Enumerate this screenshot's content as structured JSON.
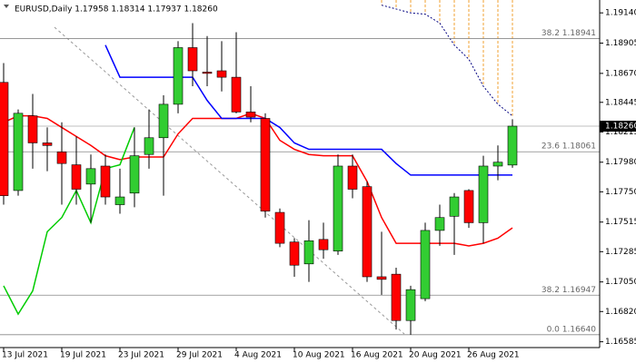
{
  "chart_data": {
    "type": "candlestick",
    "title": "EURUSD,Daily  1.17958 1.18314 1.17937 1.18260",
    "categories": [
      "13 Jul 2021",
      null,
      null,
      null,
      "19 Jul 2021",
      null,
      null,
      null,
      "23 Jul 2021",
      null,
      null,
      null,
      "29 Jul 2021",
      null,
      null,
      null,
      "4 Aug 2021",
      null,
      null,
      null,
      "10 Aug 2021",
      null,
      null,
      null,
      "16 Aug 2021",
      null,
      null,
      null,
      "20 Aug 2021",
      null,
      null,
      null,
      "26 Aug 2021",
      null,
      null,
      null
    ],
    "open": [
      1.186,
      1.1776,
      1.1834,
      1.1813,
      1.1806,
      1.1796,
      1.1781,
      1.1795,
      1.1765,
      1.1774,
      1.1804,
      1.1817,
      1.1843,
      1.1887,
      1.1868,
      1.1869,
      1.1864,
      1.1837,
      1.1832,
      1.1759,
      1.1736,
      1.1719,
      1.1738,
      1.1729,
      1.1795,
      1.1779,
      1.1709,
      1.1711,
      1.1675,
      1.1692,
      1.1745,
      1.1756,
      1.1776,
      1.1751,
      1.1795,
      1.17958
    ],
    "high": [
      1.1875,
      1.1839,
      1.1851,
      1.1825,
      1.1829,
      1.1818,
      1.1804,
      1.1804,
      1.1793,
      1.1825,
      1.1839,
      1.185,
      1.1892,
      1.1906,
      1.1896,
      1.1892,
      1.1899,
      1.1857,
      1.1836,
      1.1762,
      1.1739,
      1.1753,
      1.1751,
      1.1804,
      1.1804,
      1.1783,
      1.1744,
      1.1716,
      1.1702,
      1.1751,
      1.1765,
      1.1774,
      1.1777,
      1.1803,
      1.1811,
      1.18314
    ],
    "low": [
      1.1765,
      1.1772,
      1.1793,
      1.1791,
      1.1765,
      1.1765,
      1.1751,
      1.1765,
      1.1758,
      1.1763,
      1.1793,
      1.1772,
      1.1836,
      1.1857,
      1.1857,
      1.1853,
      1.1836,
      1.1829,
      1.1755,
      1.1732,
      1.1709,
      1.1705,
      1.1723,
      1.1726,
      1.177,
      1.1705,
      1.1695,
      1.1668,
      1.1664,
      1.169,
      1.1733,
      1.1726,
      1.1747,
      1.1735,
      1.1784,
      1.17937
    ],
    "close": [
      1.1772,
      1.1836,
      1.1813,
      1.1811,
      1.1797,
      1.1777,
      1.1793,
      1.1771,
      1.1771,
      1.1803,
      1.1817,
      1.1843,
      1.1887,
      1.1869,
      1.1867,
      1.1864,
      1.1837,
      1.1833,
      1.176,
      1.1735,
      1.1718,
      1.1737,
      1.173,
      1.1795,
      1.1777,
      1.1709,
      1.1707,
      1.1675,
      1.1699,
      1.1745,
      1.1755,
      1.1771,
      1.1751,
      1.1795,
      1.1798,
      1.1826
    ],
    "up_color": "#32cd32",
    "down_color": "#ff0000",
    "lines": [
      {
        "color": "#ff0000",
        "values": [
          1.1829,
          1.1834,
          1.1834,
          1.1832,
          1.1825,
          1.1818,
          1.1811,
          1.1803,
          1.18,
          1.1802,
          1.1802,
          1.1802,
          1.182,
          1.1832,
          1.1832,
          1.1832,
          1.1832,
          1.1836,
          1.1832,
          1.1815,
          1.1808,
          1.1804,
          1.1803,
          1.1803,
          1.1803,
          1.1783,
          1.1755,
          1.1735,
          1.1735,
          1.1735,
          1.1735,
          1.1735,
          1.1733,
          1.1735,
          1.1739,
          1.1747
        ]
      },
      {
        "color": "#0000ff",
        "values": [
          null,
          null,
          null,
          null,
          null,
          null,
          null,
          1.1889,
          1.1864,
          1.1864,
          1.1864,
          1.1864,
          1.1864,
          1.1864,
          1.1846,
          1.1832,
          1.1832,
          1.1832,
          1.1832,
          1.1825,
          1.1813,
          1.1808,
          1.1808,
          1.1808,
          1.1808,
          1.1808,
          1.1808,
          1.1797,
          1.1788,
          1.1788,
          1.1788,
          1.1788,
          1.1788,
          1.1788,
          1.1788,
          1.1788
        ]
      },
      {
        "color": "#00cc00",
        "values": [
          1.1702,
          1.168,
          1.1698,
          1.1744,
          1.1755,
          1.1776,
          1.1751,
          1.1793,
          1.1796,
          1.1825,
          null,
          null,
          null,
          null,
          null,
          null,
          null,
          null,
          null,
          null,
          null,
          null,
          null,
          null,
          null,
          null,
          null,
          null,
          null,
          null,
          null,
          null,
          null,
          null,
          null,
          null
        ]
      }
    ],
    "cloud": {
      "color": "#f0a030",
      "values": [
        null,
        null,
        null,
        null,
        null,
        null,
        null,
        null,
        null,
        null,
        null,
        null,
        null,
        null,
        null,
        null,
        null,
        null,
        null,
        null,
        null,
        null,
        null,
        null,
        null,
        null,
        1.192,
        1.1917,
        1.1914,
        1.1913,
        1.1906,
        1.1889,
        1.1878,
        1.1857,
        1.1843,
        1.1834
      ]
    },
    "fib_levels": [
      {
        "value": 1.18941,
        "label": "38.2 1.18941"
      },
      {
        "value": 1.18061,
        "label": "23.6 1.18061"
      },
      {
        "value": 1.16947,
        "label": "38.2 1.16947"
      },
      {
        "value": 1.1664,
        "label": "0.0 1.16640"
      }
    ],
    "last_price": {
      "value": 1.1826,
      "label": "1.18260"
    },
    "ylim": [
      1.1654,
      1.1924
    ],
    "yticks": [
      {
        "value": 1.1914,
        "label": "1.19140"
      },
      {
        "value": 1.18905,
        "label": "1.18905"
      },
      {
        "value": 1.1867,
        "label": "1.18670"
      },
      {
        "value": 1.18445,
        "label": "1.18445"
      },
      {
        "value": 1.18215,
        "label": "1.18215"
      },
      {
        "value": 1.1798,
        "label": "1.17980"
      },
      {
        "value": 1.1775,
        "label": "1.17750"
      },
      {
        "value": 1.17515,
        "label": "1.17515"
      },
      {
        "value": 1.17285,
        "label": "1.17285"
      },
      {
        "value": 1.1705,
        "label": "1.17050"
      },
      {
        "value": 1.1682,
        "label": "1.16820"
      },
      {
        "value": 1.16585,
        "label": "1.16585"
      }
    ]
  }
}
